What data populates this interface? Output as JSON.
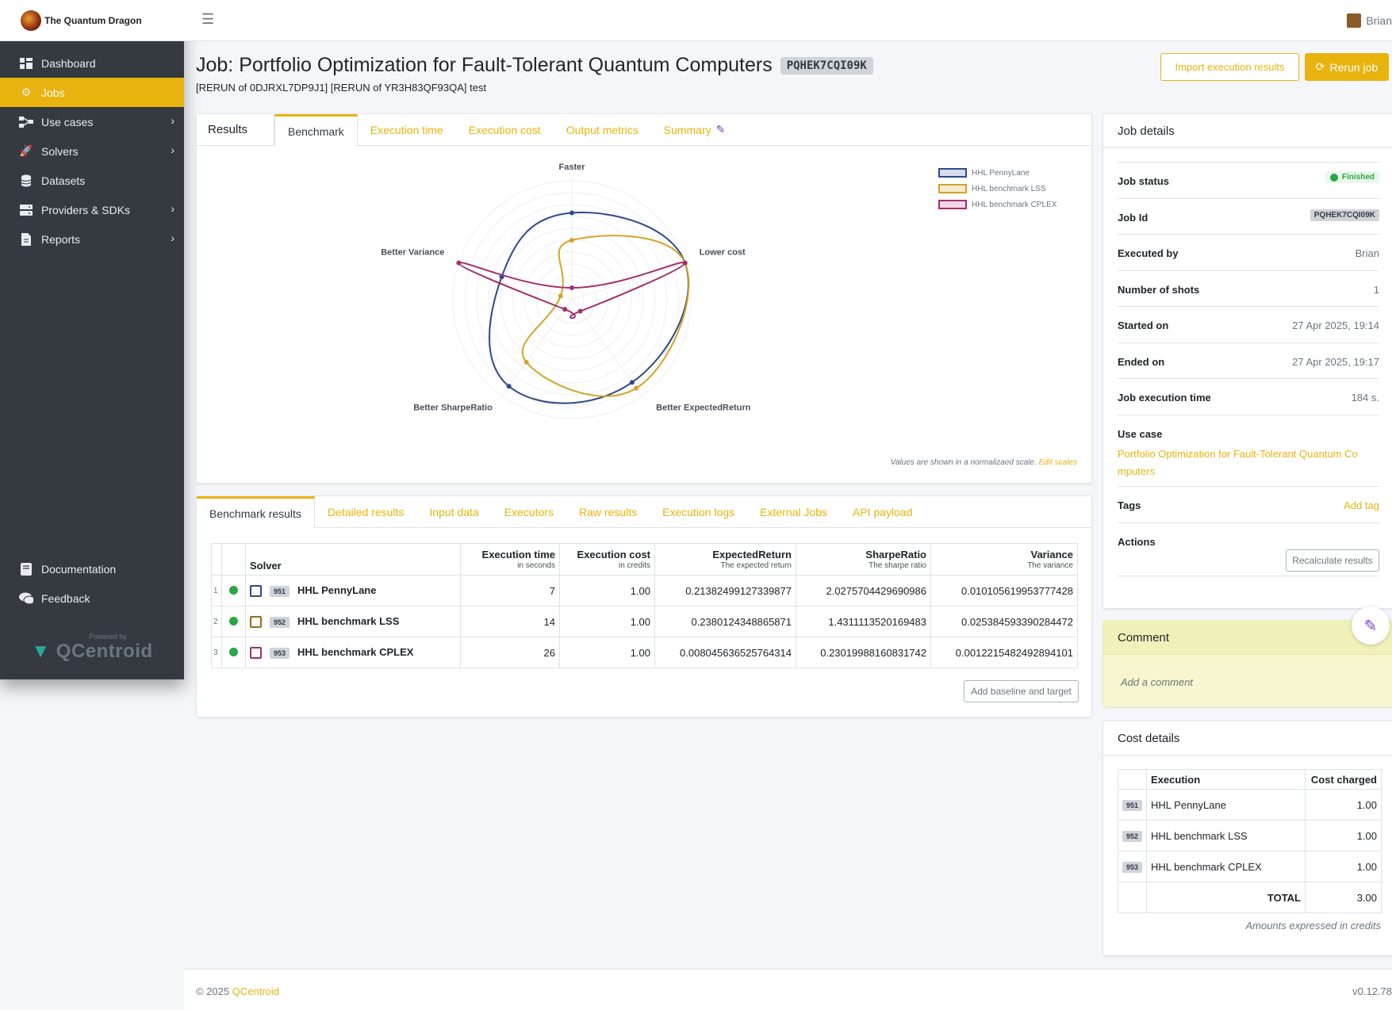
{
  "brand": {
    "name": "The Quantum Dragon"
  },
  "sidebar": {
    "items": [
      {
        "label": "Dashboard",
        "icon": "dashboard-icon"
      },
      {
        "label": "Jobs",
        "icon": "cogs-icon",
        "active": true
      },
      {
        "label": "Use cases",
        "icon": "sitemap-icon",
        "chevron": true
      },
      {
        "label": "Solvers",
        "icon": "rocket-icon",
        "chevron": true
      },
      {
        "label": "Datasets",
        "icon": "database-icon"
      },
      {
        "label": "Providers & SDKs",
        "icon": "server-icon",
        "chevron": true
      },
      {
        "label": "Reports",
        "icon": "file-icon",
        "chevron": true
      }
    ],
    "bottom": [
      {
        "label": "Documentation",
        "icon": "book-icon"
      },
      {
        "label": "Feedback",
        "icon": "comments-icon"
      }
    ],
    "powered_by": "Powered by",
    "powered_brand": "QCentroid"
  },
  "topbar": {
    "user": "Brian"
  },
  "page": {
    "title": "Job: Portfolio Optimization for Fault-Tolerant Quantum Computers",
    "job_badge": "PQHEK7CQI09K",
    "subtitle": "[RERUN of 0DJRXL7DP9J1] [RERUN of YR3H83QF93QA] test",
    "import_button": "Import execution results",
    "rerun_button": "Rerun job"
  },
  "chart_tabs": {
    "title": "Results",
    "tabs": [
      "Benchmark",
      "Execution time",
      "Execution cost",
      "Output metrics",
      "Summary"
    ]
  },
  "chart_data": {
    "type": "radar",
    "axes": [
      "Faster",
      "Lower cost",
      "Better ExpectedReturn",
      "Better SharpeRatio",
      "Better Variance"
    ],
    "range": [
      0,
      1
    ],
    "grid": true,
    "legend_position": "top-right",
    "series": [
      {
        "name": "HHL PennyLane",
        "color": "#2b4a8b",
        "fill": "#d6dcef",
        "values": [
          0.73,
          1.0,
          0.86,
          0.9,
          0.62
        ]
      },
      {
        "name": "HHL benchmark LSS",
        "color": "#d4a42a",
        "fill": "#f7ecd0",
        "values": [
          0.5,
          1.0,
          0.92,
          0.65,
          0.1
        ]
      },
      {
        "name": "HHL benchmark CPLEX",
        "color": "#a0306e",
        "fill": "#f3d6e6",
        "values": [
          0.1,
          1.0,
          0.12,
          0.1,
          1.0
        ]
      }
    ],
    "note": "Values are shown in a normalizaed scale.",
    "note_link": "Edit scales"
  },
  "results_tabs": [
    "Benchmark results",
    "Detailed results",
    "Input data",
    "Executors",
    "Raw results",
    "Execution logs",
    "External Jobs",
    "API payload"
  ],
  "results_table": {
    "headers": [
      {
        "title": "Solver",
        "sub": ""
      },
      {
        "title": "Execution time",
        "sub": "in seconds"
      },
      {
        "title": "Execution cost",
        "sub": "in credits"
      },
      {
        "title": "ExpectedReturn",
        "sub": "The expected return"
      },
      {
        "title": "SharpeRatio",
        "sub": "The sharpe ratio"
      },
      {
        "title": "Variance",
        "sub": "The variance"
      }
    ],
    "rows": [
      {
        "idx": "1",
        "color": "#2b4a8b",
        "badge": "951",
        "solver": "HHL PennyLane",
        "time": "7",
        "cost": "1.00",
        "er": "0.21382499127339877",
        "sr": "2.0275704429690986",
        "var": "0.010105619953777428"
      },
      {
        "idx": "2",
        "color": "#9a6b1e",
        "badge": "952",
        "solver": "HHL benchmark LSS",
        "time": "14",
        "cost": "1.00",
        "er": "0.2380124348865871",
        "sr": "1.4311113520169483",
        "var": "0.025384593390284472"
      },
      {
        "idx": "3",
        "color": "#a0306e",
        "badge": "953",
        "solver": "HHL benchmark CPLEX",
        "time": "26",
        "cost": "1.00",
        "er": "0.008045636525764314",
        "sr": "0.23019988160831742",
        "var": "0.0012215482492894101"
      }
    ],
    "baseline_button": "Add baseline and target"
  },
  "job_details": {
    "title": "Job details",
    "rows": [
      {
        "label": "Job status",
        "value": "Finished"
      },
      {
        "label": "Job Id",
        "value": "PQHEK7CQI09K"
      },
      {
        "label": "Executed by",
        "value": "Brian"
      },
      {
        "label": "Number of shots",
        "value": "1"
      },
      {
        "label": "Started on",
        "value": "27 Apr 2025, 19:14"
      },
      {
        "label": "Ended on",
        "value": "27 Apr 2025, 19:17"
      },
      {
        "label": "Job execution time",
        "value": "184 s."
      }
    ],
    "use_case_label": "Use case",
    "use_case_line1": "Portfolio Optimization for Fault-Tolerant Quantum Co",
    "use_case_line2": "mputers",
    "tags_label": "Tags",
    "add_tag": "Add tag",
    "actions_label": "Actions",
    "recalc_button": "Recalculate results"
  },
  "comment": {
    "title": "Comment",
    "placeholder": "Add a comment"
  },
  "cost_details": {
    "title": "Cost details",
    "headers": [
      "Execution",
      "Cost charged"
    ],
    "rows": [
      {
        "badge": "951",
        "name": "HHL PennyLane",
        "cost": "1.00"
      },
      {
        "badge": "952",
        "name": "HHL benchmark LSS",
        "cost": "1.00"
      },
      {
        "badge": "953",
        "name": "HHL benchmark CPLEX",
        "cost": "1.00"
      }
    ],
    "total_label": "TOTAL",
    "total": "3.00",
    "note": "Amounts expressed in credits"
  },
  "footer": {
    "copyright": "© 2025",
    "brand": "QCentroid",
    "version": "v0.12.78"
  }
}
